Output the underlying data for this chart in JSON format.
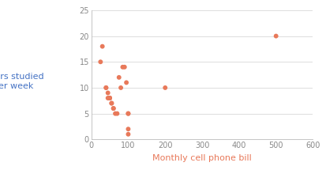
{
  "x": [
    25,
    30,
    40,
    40,
    45,
    45,
    50,
    50,
    50,
    55,
    55,
    60,
    60,
    65,
    70,
    75,
    80,
    85,
    90,
    95,
    100,
    100,
    100,
    100,
    200,
    500
  ],
  "y": [
    15,
    18,
    10,
    10,
    8,
    9,
    8,
    8,
    8,
    7,
    7,
    6,
    6,
    5,
    5,
    12,
    10,
    14,
    14,
    11,
    5,
    5,
    2,
    1,
    10,
    20
  ],
  "dot_color": "#E8795A",
  "xlabel": "Monthly cell phone bill",
  "ylabel_line1": "Hours studied",
  "ylabel_line2": "per week",
  "xlabel_color": "#E8795A",
  "ylabel_color": "#4472C4",
  "xlim": [
    0,
    600
  ],
  "ylim": [
    0,
    25
  ],
  "xticks": [
    0,
    100,
    200,
    300,
    400,
    500,
    600
  ],
  "yticks": [
    0,
    5,
    10,
    15,
    20,
    25
  ],
  "dot_size": 18,
  "grid_color": "#d8d8d8",
  "bg_color": "#ffffff",
  "spine_color": "#bbbbbb",
  "tick_color": "#888888",
  "tick_fontsize": 7,
  "label_fontsize": 8,
  "ylabel_fontsize": 8
}
